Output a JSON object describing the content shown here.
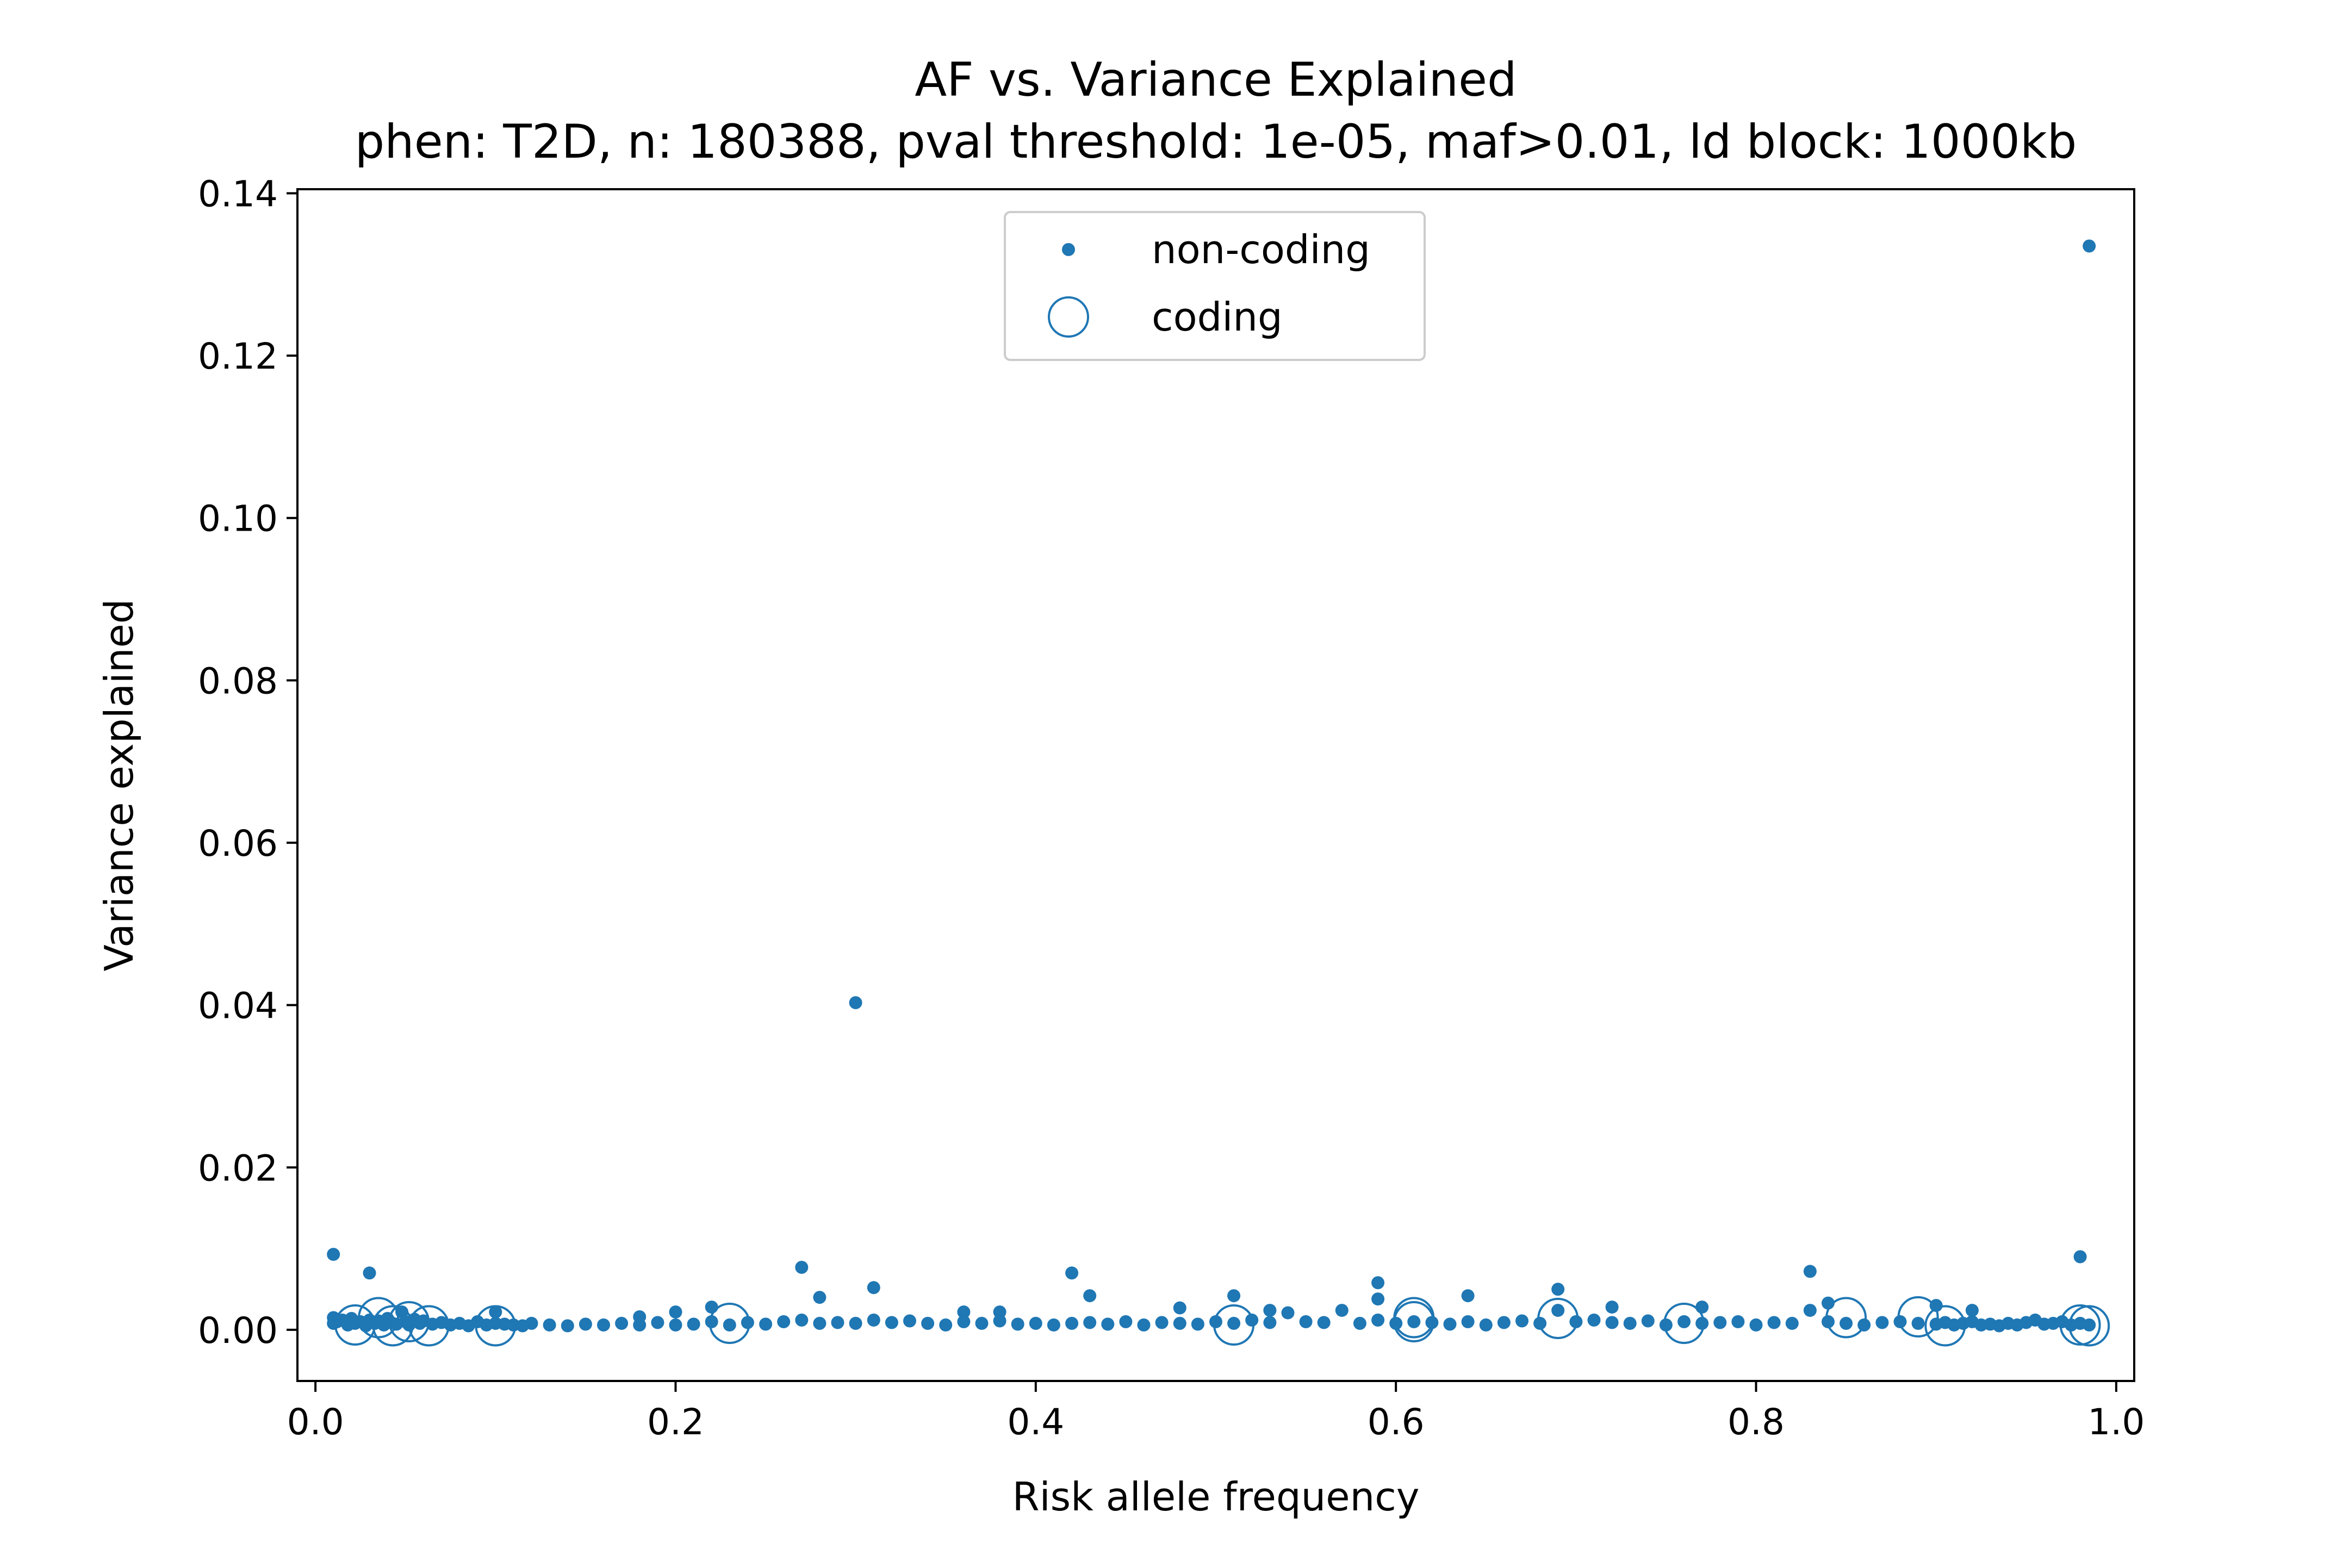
{
  "chart_data": {
    "type": "scatter",
    "title": "AF vs. Variance Explained",
    "subtitle": "phen: T2D, n: 180388, pval threshold: 1e-05, maf>0.01, ld block: 1000kb",
    "xlabel": "Risk allele frequency",
    "ylabel": "Variance explained",
    "xlim": [
      -0.01,
      1.01
    ],
    "ylim": [
      -0.0063,
      0.1405
    ],
    "x_ticks": [
      0.0,
      0.2,
      0.4,
      0.6,
      0.8,
      1.0
    ],
    "x_tick_labels": [
      "0.0",
      "0.2",
      "0.4",
      "0.6",
      "0.8",
      "1.0"
    ],
    "y_ticks": [
      0.0,
      0.02,
      0.04,
      0.06,
      0.08,
      0.1,
      0.12,
      0.14
    ],
    "y_tick_labels": [
      "0.00",
      "0.02",
      "0.04",
      "0.06",
      "0.08",
      "0.10",
      "0.12",
      "0.14"
    ],
    "grid": false,
    "legend_position": "top-center",
    "colors": {
      "series": "#1f77b4",
      "axes": "#000000",
      "legend_border": "#cccccc"
    },
    "series": [
      {
        "name": "non-coding",
        "marker": "dot",
        "x": [
          0.01,
          0.01,
          0.01,
          0.012,
          0.015,
          0.018,
          0.02,
          0.022,
          0.025,
          0.028,
          0.03,
          0.03,
          0.033,
          0.035,
          0.038,
          0.04,
          0.042,
          0.045,
          0.048,
          0.05,
          0.052,
          0.055,
          0.058,
          0.06,
          0.065,
          0.07,
          0.075,
          0.08,
          0.085,
          0.09,
          0.095,
          0.1,
          0.1,
          0.105,
          0.11,
          0.115,
          0.12,
          0.13,
          0.14,
          0.15,
          0.16,
          0.17,
          0.18,
          0.18,
          0.19,
          0.2,
          0.2,
          0.21,
          0.22,
          0.22,
          0.23,
          0.24,
          0.25,
          0.26,
          0.27,
          0.27,
          0.28,
          0.28,
          0.29,
          0.3,
          0.3,
          0.31,
          0.31,
          0.32,
          0.33,
          0.34,
          0.35,
          0.36,
          0.36,
          0.37,
          0.38,
          0.38,
          0.39,
          0.4,
          0.41,
          0.42,
          0.42,
          0.43,
          0.43,
          0.44,
          0.45,
          0.46,
          0.47,
          0.48,
          0.48,
          0.49,
          0.5,
          0.51,
          0.51,
          0.52,
          0.53,
          0.53,
          0.54,
          0.55,
          0.56,
          0.57,
          0.58,
          0.59,
          0.59,
          0.59,
          0.6,
          0.61,
          0.62,
          0.63,
          0.64,
          0.64,
          0.65,
          0.66,
          0.67,
          0.68,
          0.69,
          0.69,
          0.7,
          0.71,
          0.72,
          0.72,
          0.73,
          0.74,
          0.75,
          0.76,
          0.77,
          0.77,
          0.78,
          0.79,
          0.8,
          0.81,
          0.82,
          0.83,
          0.83,
          0.84,
          0.84,
          0.85,
          0.86,
          0.87,
          0.88,
          0.89,
          0.9,
          0.9,
          0.905,
          0.91,
          0.915,
          0.92,
          0.92,
          0.925,
          0.93,
          0.935,
          0.94,
          0.945,
          0.95,
          0.955,
          0.96,
          0.965,
          0.97,
          0.975,
          0.98,
          0.98,
          0.985,
          0.985
        ],
        "y": [
          0.0093,
          0.0015,
          0.0008,
          0.001,
          0.0012,
          0.0006,
          0.0014,
          0.0008,
          0.001,
          0.0005,
          0.007,
          0.0012,
          0.0008,
          0.0011,
          0.0006,
          0.0014,
          0.0009,
          0.0007,
          0.0022,
          0.001,
          0.0006,
          0.0013,
          0.0008,
          0.0011,
          0.0007,
          0.0009,
          0.0006,
          0.0008,
          0.0005,
          0.001,
          0.0006,
          0.0022,
          0.0008,
          0.0007,
          0.0006,
          0.0005,
          0.0008,
          0.0006,
          0.0005,
          0.0007,
          0.0006,
          0.0008,
          0.0016,
          0.0006,
          0.0009,
          0.0022,
          0.0006,
          0.0007,
          0.0028,
          0.001,
          0.0006,
          0.0009,
          0.0007,
          0.001,
          0.0077,
          0.0012,
          0.004,
          0.0008,
          0.0009,
          0.0403,
          0.0008,
          0.0052,
          0.0012,
          0.0009,
          0.0011,
          0.0008,
          0.0006,
          0.0022,
          0.001,
          0.0008,
          0.0022,
          0.0011,
          0.0007,
          0.0008,
          0.0006,
          0.007,
          0.0008,
          0.0042,
          0.0009,
          0.0007,
          0.001,
          0.0006,
          0.0009,
          0.0027,
          0.0008,
          0.0007,
          0.001,
          0.0042,
          0.0008,
          0.0012,
          0.0024,
          0.0009,
          0.0021,
          0.001,
          0.0009,
          0.0024,
          0.0008,
          0.0058,
          0.0038,
          0.0012,
          0.0008,
          0.001,
          0.0009,
          0.0007,
          0.0042,
          0.001,
          0.0006,
          0.0009,
          0.0011,
          0.0008,
          0.005,
          0.0024,
          0.001,
          0.0012,
          0.0028,
          0.0009,
          0.0008,
          0.0011,
          0.0006,
          0.001,
          0.0028,
          0.0008,
          0.0009,
          0.001,
          0.0006,
          0.0009,
          0.0008,
          0.0072,
          0.0024,
          0.0033,
          0.001,
          0.0008,
          0.0006,
          0.0009,
          0.001,
          0.0008,
          0.003,
          0.0007,
          0.0009,
          0.0006,
          0.0008,
          0.0024,
          0.001,
          0.0006,
          0.0007,
          0.0005,
          0.0008,
          0.0006,
          0.0009,
          0.0012,
          0.0007,
          0.0008,
          0.001,
          0.0006,
          0.009,
          0.0008,
          0.1335,
          0.0006
        ]
      },
      {
        "name": "coding",
        "marker": "open-circle",
        "x": [
          0.022,
          0.035,
          0.043,
          0.052,
          0.063,
          0.1,
          0.23,
          0.51,
          0.61,
          0.61,
          0.69,
          0.76,
          0.85,
          0.89,
          0.905,
          0.98,
          0.985
        ],
        "y": [
          0.0006,
          0.0015,
          0.0005,
          0.001,
          0.0005,
          0.0005,
          0.0008,
          0.0006,
          0.0015,
          0.001,
          0.0014,
          0.0008,
          0.0015,
          0.0016,
          0.0005,
          0.0006,
          0.0005
        ]
      }
    ]
  }
}
